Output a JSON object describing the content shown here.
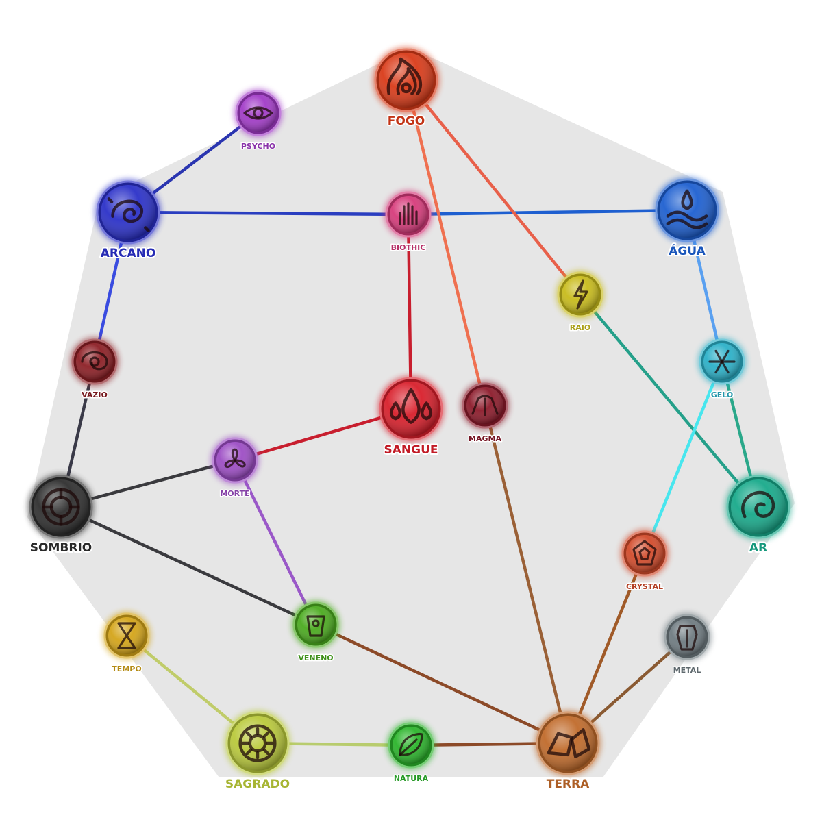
{
  "diagram": {
    "elements": [
      {
        "id": "fogo",
        "label": "FOGO",
        "tier": "major",
        "color": "#d93a18",
        "icon": "fire-icon"
      },
      {
        "id": "agua",
        "label": "ÁGUA",
        "tier": "major",
        "color": "#1d5fd0",
        "icon": "water-icon"
      },
      {
        "id": "arcano",
        "label": "ARCANO",
        "tier": "major",
        "color": "#2a30c8",
        "icon": "arcane-swirl-icon"
      },
      {
        "id": "sangue",
        "label": "SANGUE",
        "tier": "major",
        "color": "#d81e2a",
        "icon": "blood-drops-icon"
      },
      {
        "id": "sombrio",
        "label": "SOMBRIO",
        "tier": "major",
        "color": "#2e2e2e",
        "icon": "dark-spiral-icon"
      },
      {
        "id": "ar",
        "label": "AR",
        "tier": "major",
        "color": "#17a98a",
        "icon": "wind-swirl-icon"
      },
      {
        "id": "terra",
        "label": "TERRA",
        "tier": "major",
        "color": "#c06a2a",
        "icon": "rocks-icon"
      },
      {
        "id": "sagrado",
        "label": "SAGRADO",
        "tier": "major",
        "color": "#b9c93a",
        "icon": "sun-icon"
      },
      {
        "id": "psycho",
        "label": "PSYCHO",
        "tier": "minor",
        "color": "#a13ac7",
        "icon": "eye-icon"
      },
      {
        "id": "biothic",
        "label": "BIOTHIC",
        "tier": "minor",
        "color": "#d63a7a",
        "icon": "hand-icon"
      },
      {
        "id": "raio",
        "label": "RAIO",
        "tier": "minor",
        "color": "#c8bb1a",
        "icon": "lightning-icon"
      },
      {
        "id": "gelo",
        "label": "GELO",
        "tier": "minor",
        "color": "#2ab0c8",
        "icon": "snowflake-icon"
      },
      {
        "id": "vazio",
        "label": "VAZIO",
        "tier": "minor",
        "color": "#8c1e24",
        "icon": "void-icon"
      },
      {
        "id": "magma",
        "label": "MAGMA",
        "tier": "minor",
        "color": "#8c1a2a",
        "icon": "magma-icon"
      },
      {
        "id": "morte",
        "label": "MORTE",
        "tier": "minor",
        "color": "#9c4cc4",
        "icon": "death-knot-icon"
      },
      {
        "id": "crystal",
        "label": "CRYSTAL",
        "tier": "minor",
        "color": "#d24a2a",
        "icon": "crystal-icon"
      },
      {
        "id": "metal",
        "label": "METAL",
        "tier": "minor",
        "color": "#6e7a80",
        "icon": "armor-icon"
      },
      {
        "id": "veneno",
        "label": "VENENO",
        "tier": "minor",
        "color": "#4aaa1e",
        "icon": "poison-icon"
      },
      {
        "id": "tempo",
        "label": "TEMPO",
        "tier": "minor",
        "color": "#d4a418",
        "icon": "hourglass-icon"
      },
      {
        "id": "natura",
        "label": "NATURA",
        "tier": "minor",
        "color": "#2ab42a",
        "icon": "leaf-icon"
      }
    ],
    "links": [
      {
        "from": "psycho",
        "to": "arcano",
        "color": "#2a35b0"
      },
      {
        "from": "arcano",
        "to": "biothic",
        "color": "#2a3ec0"
      },
      {
        "from": "biothic",
        "to": "agua",
        "color": "#1e5fd0"
      },
      {
        "from": "fogo",
        "to": "magma",
        "color": "#ef7050"
      },
      {
        "from": "fogo",
        "to": "raio",
        "color": "#e8604a"
      },
      {
        "from": "biothic",
        "to": "sangue",
        "color": "#c81e2e"
      },
      {
        "from": "arcano",
        "to": "vazio",
        "color": "#3a4ce0"
      },
      {
        "from": "vazio",
        "to": "sombrio",
        "color": "#3a3a48"
      },
      {
        "from": "agua",
        "to": "gelo",
        "color": "#5aa0f0"
      },
      {
        "from": "raio",
        "to": "ar",
        "color": "#25a08a"
      },
      {
        "from": "gelo",
        "to": "ar",
        "color": "#2aa88a"
      },
      {
        "from": "gelo",
        "to": "crystal",
        "color": "#48e6ee"
      },
      {
        "from": "sangue",
        "to": "morte",
        "color": "#c81e2e"
      },
      {
        "from": "morte",
        "to": "sombrio",
        "color": "#3a3a3e"
      },
      {
        "from": "morte",
        "to": "veneno",
        "color": "#9a58c8"
      },
      {
        "from": "sombrio",
        "to": "veneno",
        "color": "#3a3a3e"
      },
      {
        "from": "veneno",
        "to": "terra",
        "color": "#8c4a28"
      },
      {
        "from": "magma",
        "to": "terra",
        "color": "#9a6036"
      },
      {
        "from": "crystal",
        "to": "terra",
        "color": "#a05a28"
      },
      {
        "from": "metal",
        "to": "terra",
        "color": "#8a5a32"
      },
      {
        "from": "natura",
        "to": "terra",
        "color": "#8c4a28"
      },
      {
        "from": "sagrado",
        "to": "natura",
        "color": "#b8cc6e"
      },
      {
        "from": "tempo",
        "to": "sagrado",
        "color": "#c0cc6a"
      }
    ]
  }
}
